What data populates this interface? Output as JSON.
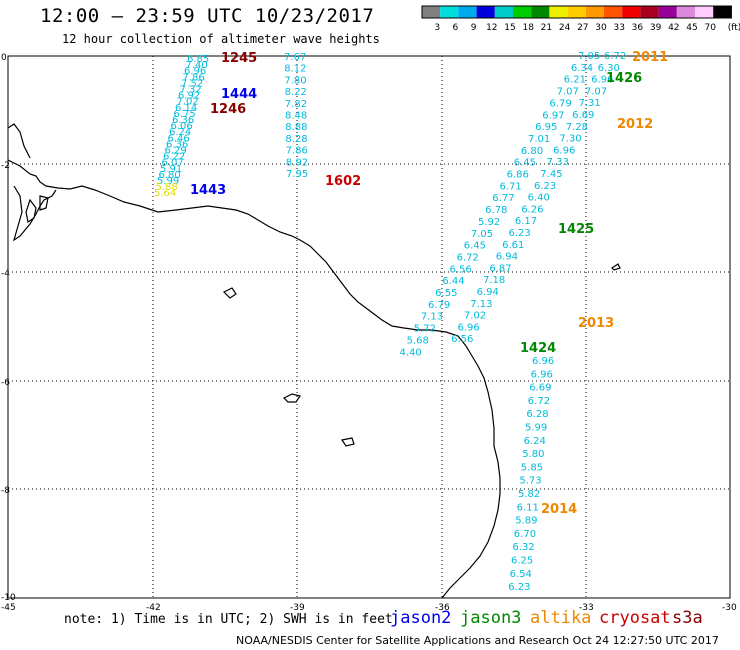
{
  "title": "12:00 – 23:59 UTC 10/23/2017",
  "subtitle": "12 hour collection of altimeter wave heights",
  "note": "note: 1) Time is in UTC; 2) SWH is in feet",
  "footer": "NOAA/NESDIS Center for Satellite Applications and Research     Oct 24 12:27:50 UTC 2017",
  "satellites": [
    {
      "name": "jason2",
      "color": "#0000ee"
    },
    {
      "name": "jason3",
      "color": "#008800"
    },
    {
      "name": "altika",
      "color": "#ee8800"
    },
    {
      "name": "cryosat",
      "color": "#cc0000"
    },
    {
      "name": "s3a",
      "color": "#880000"
    }
  ],
  "legend": {
    "unit": "(ft)",
    "labels": [
      "3",
      "6",
      "9",
      "12",
      "15",
      "18",
      "21",
      "24",
      "27",
      "30",
      "33",
      "36",
      "39",
      "42",
      "45",
      "70"
    ],
    "colors": [
      "#808080",
      "#00dddd",
      "#00aaee",
      "#0000dd",
      "#00cccc",
      "#00cc00",
      "#008800",
      "#eeee00",
      "#ffcc00",
      "#ff9900",
      "#ff5500",
      "#ee0000",
      "#aa0022",
      "#990099",
      "#dd88dd",
      "#ffccff",
      "#000000"
    ]
  },
  "axes": {
    "x_ticks": [
      "-45",
      "-42",
      "-39",
      "-36",
      "-33",
      "-30"
    ],
    "y_ticks": [
      "0",
      "-2",
      "-4",
      "-6",
      "-8",
      "-10"
    ]
  },
  "colors": {
    "wave": "#00bbdd",
    "wave_yellow": "#dddd00"
  },
  "pass_labels": [
    {
      "text": "1245",
      "color": "#880000"
    },
    {
      "text": "1444",
      "color": "#0000ee"
    },
    {
      "text": "1246",
      "color": "#880000"
    },
    {
      "text": "1443",
      "color": "#0000ee"
    },
    {
      "text": "1602",
      "color": "#cc0000"
    },
    {
      "text": "2011",
      "color": "#ee8800"
    },
    {
      "text": "1426",
      "color": "#008800"
    },
    {
      "text": "2012",
      "color": "#ee8800"
    },
    {
      "text": "1425",
      "color": "#008800"
    },
    {
      "text": "2013",
      "color": "#ee8800"
    },
    {
      "text": "1424",
      "color": "#008800"
    },
    {
      "text": "2014",
      "color": "#ee8800"
    }
  ],
  "tracks": [
    {
      "name": "track-a",
      "values": [
        "6.85",
        "7.40",
        "6.96",
        "7.86",
        "7.52",
        "7.32",
        "6.92",
        "7.02",
        "6.14",
        "6.75",
        "6.36",
        "6.06",
        "6.24",
        "6.46",
        "6.36",
        "6.29",
        "6.22",
        "6.07",
        "5.91",
        "6.80",
        "5.99",
        "5.88",
        "5.64"
      ]
    },
    {
      "name": "track-b",
      "values": [
        "7.67",
        "8.12",
        "7.80",
        "8.22",
        "7.82",
        "8.48",
        "8.88",
        "8.28",
        "7.86",
        "8.92",
        "7.95"
      ]
    },
    {
      "name": "track-c",
      "values": [
        "7.05",
        "6.72",
        "6.34",
        "6.30",
        "6.21",
        "6.96",
        "7.07",
        "7.07",
        "6.79",
        "7.31",
        "6.97",
        "6.69",
        "6.95",
        "7.28",
        "7.01",
        "7.30",
        "6.80",
        "6.96",
        "6.45",
        "7.33",
        "6.86",
        "7.45",
        "6.71",
        "6.23",
        "6.77",
        "6.40",
        "6.78",
        "6.26",
        "5.92",
        "6.17",
        "7.05",
        "6.23",
        "6.45",
        "6.61",
        "6.72",
        "6.94",
        "6.56",
        "6.87",
        "6.44",
        "7.18",
        "6.55",
        "6.94",
        "6.79",
        "7.13",
        "7.13",
        "7.02",
        "5.72",
        "6.96",
        "5.68",
        "6.56",
        "4.40"
      ]
    },
    {
      "name": "track-d",
      "values": [
        "6.96",
        "6.96",
        "6.69",
        "6.72",
        "6.28",
        "5.99",
        "6.24",
        "5.80",
        "5.85",
        "5.73",
        "5.82",
        "6.11",
        "5.89",
        "6.70",
        "6.32",
        "6.25",
        "6.54",
        "6.23"
      ]
    }
  ]
}
